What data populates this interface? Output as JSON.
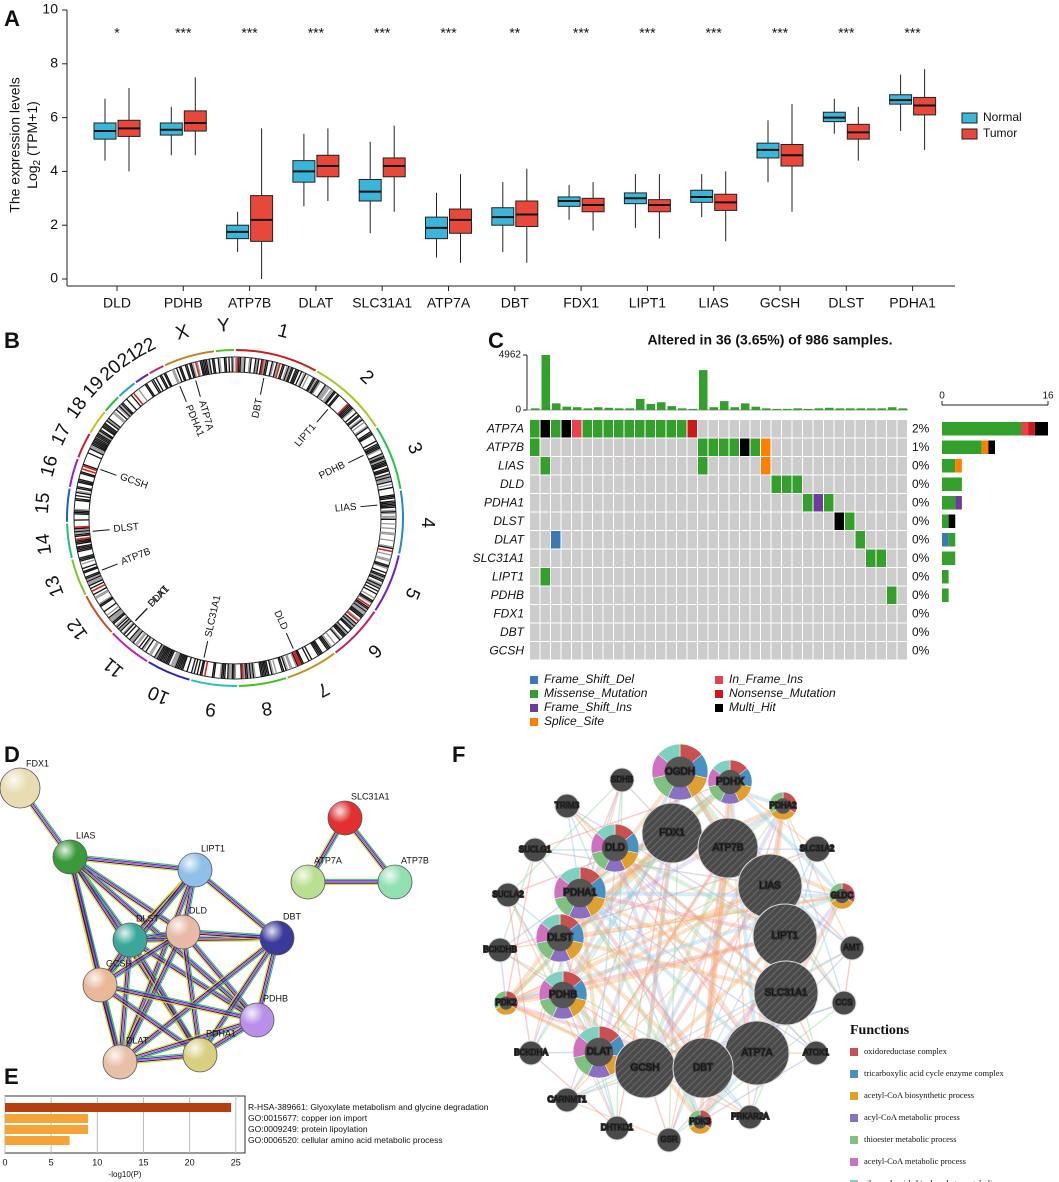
{
  "panel_labels": [
    "A",
    "B",
    "C",
    "D",
    "E",
    "F"
  ],
  "chart_data": [
    {
      "type": "box",
      "ylabel": "The expression levels",
      "ylabel_unit": [
        "Log",
        "2",
        " (TPM+1)"
      ],
      "categories": [
        "DLD",
        "PDHB",
        "ATP7B",
        "DLAT",
        "SLC31A1",
        "ATP7A",
        "DBT",
        "FDX1",
        "LIPT1",
        "LIAS",
        "GCSH",
        "DLST",
        "PDHA1"
      ],
      "significance": [
        "*",
        "***",
        "***",
        "***",
        "***",
        "***",
        "**",
        "***",
        "***",
        "***",
        "***",
        "***",
        "***"
      ],
      "ylim": [
        0,
        10
      ],
      "yticks": [
        0,
        2,
        4,
        6,
        8,
        10
      ],
      "legend": "right",
      "series": [
        {
          "name": "Normal",
          "color": "#3bb6d8",
          "min": [
            4.4,
            4.6,
            1.0,
            2.7,
            1.7,
            0.8,
            1.0,
            2.2,
            1.9,
            2.3,
            3.6,
            5.4,
            5.5
          ],
          "q1": [
            5.2,
            5.35,
            1.5,
            3.6,
            2.9,
            1.5,
            2.0,
            2.7,
            2.8,
            2.85,
            4.5,
            5.85,
            6.5
          ],
          "median": [
            5.5,
            5.55,
            1.75,
            4.0,
            3.25,
            1.9,
            2.3,
            2.9,
            3.0,
            3.05,
            4.8,
            6.0,
            6.65
          ],
          "q3": [
            5.8,
            5.8,
            2.0,
            4.4,
            3.7,
            2.3,
            2.65,
            3.05,
            3.2,
            3.3,
            5.05,
            6.2,
            6.85
          ],
          "max": [
            6.7,
            6.4,
            2.5,
            5.4,
            5.1,
            3.2,
            3.6,
            3.5,
            3.9,
            3.9,
            5.9,
            6.7,
            7.6
          ]
        },
        {
          "name": "Tumor",
          "color": "#e8483a",
          "min": [
            4.0,
            4.6,
            0.0,
            2.9,
            2.5,
            0.6,
            0.6,
            1.8,
            1.5,
            1.4,
            2.5,
            4.4,
            4.8
          ],
          "q1": [
            5.3,
            5.5,
            1.4,
            3.8,
            3.8,
            1.7,
            1.95,
            2.5,
            2.5,
            2.55,
            4.2,
            5.2,
            6.1
          ],
          "median": [
            5.6,
            5.8,
            2.2,
            4.2,
            4.2,
            2.2,
            2.4,
            2.75,
            2.75,
            2.85,
            4.6,
            5.45,
            6.45
          ],
          "q3": [
            5.9,
            6.25,
            3.1,
            4.6,
            4.5,
            2.6,
            2.9,
            3.0,
            2.95,
            3.15,
            5.0,
            5.75,
            6.75
          ],
          "max": [
            7.1,
            7.5,
            5.6,
            5.6,
            5.7,
            3.9,
            4.1,
            3.6,
            3.9,
            4.0,
            6.5,
            6.4,
            7.8
          ]
        }
      ]
    },
    {
      "type": "oncoplot",
      "title": "Altered in 36 (3.65%) of 986 samples.",
      "genes": [
        "ATP7A",
        "ATP7B",
        "LIAS",
        "DLD",
        "PDHA1",
        "DLST",
        "DLAT",
        "SLC31A1",
        "LIPT1",
        "PDHB",
        "FDX1",
        "DBT",
        "GCSH"
      ],
      "percent": [
        "2%",
        "1%",
        "0%",
        "0%",
        "0%",
        "0%",
        "0%",
        "0%",
        "0%",
        "0%",
        "0%",
        "0%",
        "0%"
      ],
      "ylim": [
        0,
        4962
      ],
      "yticks": [
        0,
        4962
      ],
      "xlim": [
        0,
        16
      ],
      "xticks": [
        0,
        16
      ],
      "sample_totals": [
        150,
        4962,
        600,
        300,
        250,
        150,
        250,
        200,
        150,
        150,
        1000,
        550,
        700,
        350,
        150,
        100,
        3600,
        250,
        800,
        250,
        600,
        300,
        150,
        100,
        100,
        150,
        100,
        150,
        200,
        150,
        150,
        150,
        150,
        150,
        250,
        150
      ],
      "mutation_types": [
        {
          "name": "Frame_Shift_Del",
          "color": "#3a79b4"
        },
        {
          "name": "Missense_Mutation",
          "color": "#33a02c"
        },
        {
          "name": "Frame_Shift_Ins",
          "color": "#6a3d9a"
        },
        {
          "name": "Splice_Site",
          "color": "#ff8000"
        },
        {
          "name": "In_Frame_Ins",
          "color": "#e8404f"
        },
        {
          "name": "Nonsense_Mutation",
          "color": "#d0181b"
        },
        {
          "name": "Multi_Hit",
          "color": "#000000"
        }
      ],
      "matrix": [
        [
          "Missense_Mutation",
          "Multi_Hit",
          "Missense_Mutation",
          "Multi_Hit",
          "In_Frame_Ins",
          "Missense_Mutation",
          "Missense_Mutation",
          "Missense_Mutation",
          "Missense_Mutation",
          "Missense_Mutation",
          "Missense_Mutation",
          "Missense_Mutation",
          "Missense_Mutation",
          "Missense_Mutation",
          "Missense_Mutation",
          "Nonsense_Mutation",
          null,
          null,
          null,
          null,
          null,
          null,
          null,
          null,
          null,
          null,
          null,
          null,
          null,
          null,
          null,
          null,
          null,
          null,
          null,
          null
        ],
        [
          "Missense_Mutation",
          null,
          null,
          null,
          null,
          null,
          null,
          null,
          null,
          null,
          null,
          null,
          null,
          null,
          null,
          null,
          "Missense_Mutation",
          "Missense_Mutation",
          "Missense_Mutation",
          "Missense_Mutation",
          "Multi_Hit",
          "Missense_Mutation",
          "Splice_Site",
          null,
          null,
          null,
          null,
          null,
          null,
          null,
          null,
          null,
          null,
          null,
          null,
          null
        ],
        [
          null,
          "Missense_Mutation",
          null,
          null,
          null,
          null,
          null,
          null,
          null,
          null,
          null,
          null,
          null,
          null,
          null,
          null,
          "Missense_Mutation",
          null,
          null,
          null,
          null,
          null,
          "Splice_Site",
          null,
          null,
          null,
          null,
          null,
          null,
          null,
          null,
          null,
          null,
          null,
          null,
          null
        ],
        [
          null,
          null,
          null,
          null,
          null,
          null,
          null,
          null,
          null,
          null,
          null,
          null,
          null,
          null,
          null,
          null,
          null,
          null,
          null,
          null,
          null,
          null,
          null,
          "Missense_Mutation",
          "Missense_Mutation",
          "Missense_Mutation",
          null,
          null,
          null,
          null,
          null,
          null,
          null,
          null,
          null,
          null
        ],
        [
          null,
          null,
          null,
          null,
          null,
          null,
          null,
          null,
          null,
          null,
          null,
          null,
          null,
          null,
          null,
          null,
          null,
          null,
          null,
          null,
          null,
          null,
          null,
          null,
          null,
          null,
          "Missense_Mutation",
          "Frame_Shift_Ins",
          "Missense_Mutation",
          null,
          null,
          null,
          null,
          null,
          null,
          null
        ],
        [
          null,
          null,
          null,
          null,
          null,
          null,
          null,
          null,
          null,
          null,
          null,
          null,
          null,
          null,
          null,
          null,
          null,
          null,
          null,
          null,
          null,
          null,
          null,
          null,
          null,
          null,
          null,
          null,
          null,
          "Multi_Hit",
          "Missense_Mutation",
          null,
          null,
          null,
          null,
          null
        ],
        [
          null,
          null,
          "Frame_Shift_Del",
          null,
          null,
          null,
          null,
          null,
          null,
          null,
          null,
          null,
          null,
          null,
          null,
          null,
          null,
          null,
          null,
          null,
          null,
          null,
          null,
          null,
          null,
          null,
          null,
          null,
          null,
          null,
          null,
          "Missense_Mutation",
          null,
          null,
          null,
          null
        ],
        [
          null,
          null,
          null,
          null,
          null,
          null,
          null,
          null,
          null,
          null,
          null,
          null,
          null,
          null,
          null,
          null,
          null,
          null,
          null,
          null,
          null,
          null,
          null,
          null,
          null,
          null,
          null,
          null,
          null,
          null,
          null,
          null,
          "Missense_Mutation",
          "Missense_Mutation",
          null,
          null
        ],
        [
          null,
          "Missense_Mutation",
          null,
          null,
          null,
          null,
          null,
          null,
          null,
          null,
          null,
          null,
          null,
          null,
          null,
          null,
          null,
          null,
          null,
          null,
          null,
          null,
          null,
          null,
          null,
          null,
          null,
          null,
          null,
          null,
          null,
          null,
          null,
          null,
          null,
          null
        ],
        [
          null,
          null,
          null,
          null,
          null,
          null,
          null,
          null,
          null,
          null,
          null,
          null,
          null,
          null,
          null,
          null,
          null,
          null,
          null,
          null,
          null,
          null,
          null,
          null,
          null,
          null,
          null,
          null,
          null,
          null,
          null,
          null,
          null,
          null,
          "Missense_Mutation",
          null
        ],
        [
          null,
          null,
          null,
          null,
          null,
          null,
          null,
          null,
          null,
          null,
          null,
          null,
          null,
          null,
          null,
          null,
          null,
          null,
          null,
          null,
          null,
          null,
          null,
          null,
          null,
          null,
          null,
          null,
          null,
          null,
          null,
          null,
          null,
          null,
          null,
          null
        ],
        [
          null,
          null,
          null,
          null,
          null,
          null,
          null,
          null,
          null,
          null,
          null,
          null,
          null,
          null,
          null,
          null,
          null,
          null,
          null,
          null,
          null,
          null,
          null,
          null,
          null,
          null,
          null,
          null,
          null,
          null,
          null,
          null,
          null,
          null,
          null,
          null
        ],
        [
          null,
          null,
          null,
          null,
          null,
          null,
          null,
          null,
          null,
          null,
          null,
          null,
          null,
          null,
          null,
          null,
          null,
          null,
          null,
          null,
          null,
          null,
          null,
          null,
          null,
          null,
          null,
          null,
          null,
          null,
          null,
          null,
          null,
          null,
          null,
          null
        ]
      ]
    },
    {
      "type": "bar",
      "orientation": "horizontal",
      "categories": [
        "R-HSA-389661: Glyoxylate metabolism and glycine degradation",
        "GO:0015677: copper ion import",
        "GO:0009249: protein lipoylation",
        "GO:0006520: cellular amino acid metabolic process"
      ],
      "values": [
        24.5,
        9,
        9,
        7
      ],
      "colors": [
        "#b5400f",
        "#f5a236",
        "#f5a236",
        "#f5a236"
      ],
      "xlim": [
        0,
        26
      ],
      "xticks": [
        0,
        5,
        10,
        15,
        20,
        25
      ],
      "xlabel": "-log10(P)",
      "grid": true
    }
  ],
  "circos": {
    "chromosomes": [
      "1",
      "2",
      "3",
      "4",
      "5",
      "6",
      "7",
      "8",
      "9",
      "10",
      "11",
      "12",
      "13",
      "14",
      "15",
      "16",
      "17",
      "18",
      "19",
      "20",
      "21",
      "22",
      "X",
      "Y"
    ],
    "genes": [
      "DBT",
      "LIPT1",
      "PDHB",
      "LIAS",
      "DLD",
      "SLC31A1",
      "DLAT",
      "FDX1",
      "ATP7B",
      "DLST",
      "GCSH",
      "PDHA1",
      "ATP7A"
    ]
  },
  "string_network": {
    "nodes": [
      "FDX1",
      "LIAS",
      "LIPT1",
      "DLST",
      "DLD",
      "DBT",
      "GCSH",
      "PDHB",
      "DLAT",
      "PDHA1",
      "SLC31A1",
      "ATP7A",
      "ATP7B"
    ]
  },
  "genemania": {
    "nodes": [
      "OGDH",
      "PDHX",
      "SDHB",
      "TRIM3",
      "PDHA2",
      "SUCLG1",
      "FDX1",
      "DLD",
      "ATP7B",
      "SLC31A2",
      "SUCLA2",
      "PDHA1",
      "LIAS",
      "GLDC",
      "DLST",
      "LIPT1",
      "AMT",
      "BCKDHB",
      "PDHB",
      "SLC31A1",
      "CCS",
      "PDK2",
      "DLAT",
      "ATP7A",
      "GCSH",
      "DBT",
      "BCKDHA",
      "ATOX1",
      "CARNMT1",
      "PRKAR2A",
      "DHTKD1",
      "PDK3",
      "GSR"
    ],
    "legend_title": "Functions",
    "functions": [
      {
        "name": "oxidoreductase complex",
        "color": "#c85050"
      },
      {
        "name": "tricarboxylic acid cycle enzyme complex",
        "color": "#4a90c0"
      },
      {
        "name": "acetyl-CoA biosynthetic process",
        "color": "#e0a030"
      },
      {
        "name": "acyl-CoA metabolic process",
        "color": "#8a70c0"
      },
      {
        "name": "thioester metabolic process",
        "color": "#80c080"
      },
      {
        "name": "acetyl-CoA metabolic process",
        "color": "#d070c0"
      },
      {
        "name": "ribonucleoside bisphosphate metabolic process",
        "color": "#80d0c0"
      }
    ]
  }
}
